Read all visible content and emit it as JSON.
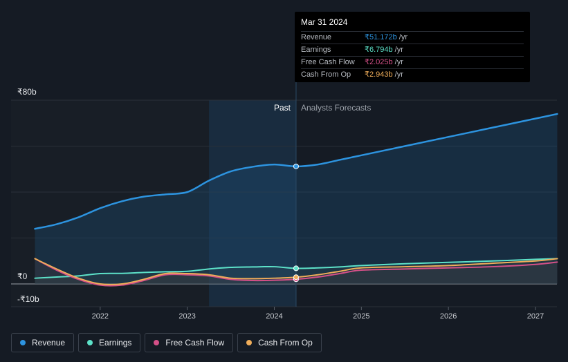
{
  "chart_data": {
    "type": "line",
    "x": [
      2021.25,
      2021.5,
      2021.75,
      2022.0,
      2022.25,
      2022.5,
      2022.75,
      2023.0,
      2023.25,
      2023.5,
      2023.75,
      2024.0,
      2024.25,
      2024.5,
      2024.75,
      2025.0,
      2025.5,
      2026.0,
      2026.5,
      2027.0,
      2027.25
    ],
    "series": [
      {
        "name": "Revenue",
        "color": "#2d94e0",
        "values": [
          24,
          26,
          29,
          33,
          36,
          38,
          39,
          40,
          45,
          49,
          51,
          52,
          51.172,
          52,
          54,
          56,
          60,
          64,
          68,
          72,
          74
        ]
      },
      {
        "name": "Earnings",
        "color": "#5de2c9",
        "values": [
          2.5,
          3,
          3.5,
          4.5,
          4.6,
          5,
          5.3,
          5.5,
          6.5,
          7.2,
          7.4,
          7.5,
          6.794,
          7,
          7.4,
          8,
          8.8,
          9.4,
          10,
          10.7,
          11
        ]
      },
      {
        "name": "Free Cash Flow",
        "color": "#d45088",
        "values": [
          11,
          6,
          2,
          -0.5,
          -0.5,
          1.5,
          4,
          4,
          3.5,
          2,
          1.5,
          1.6,
          2.025,
          3,
          4.5,
          6,
          6.5,
          7,
          7.5,
          8.5,
          9.5
        ]
      },
      {
        "name": "Cash From Op",
        "color": "#efad5a",
        "values": [
          11,
          6.5,
          2.5,
          0,
          0,
          2,
          4.5,
          4.5,
          4,
          2.5,
          2.3,
          2.5,
          2.943,
          4,
          5.5,
          7,
          7.5,
          8,
          9,
          10,
          11
        ]
      }
    ],
    "ylim": [
      -10,
      80
    ],
    "ytick_labels": [
      "₹80b",
      "₹0",
      "-₹10b"
    ],
    "xtick_values": [
      2022,
      2023,
      2024,
      2025,
      2026,
      2027
    ],
    "xtick_labels": [
      "2022",
      "2023",
      "2024",
      "2025",
      "2026",
      "2027"
    ],
    "divider_x": 2024.25,
    "highlight_start_x": 2023.25,
    "past_label": "Past",
    "forecast_label": "Analysts Forecasts",
    "tooltip": {
      "date": "Mar 31 2024",
      "rows": [
        {
          "label": "Revenue",
          "value": "₹51.172b",
          "unit": "/yr",
          "color": "#2d94e0"
        },
        {
          "label": "Earnings",
          "value": "₹6.794b",
          "unit": "/yr",
          "color": "#5de2c9"
        },
        {
          "label": "Free Cash Flow",
          "value": "₹2.025b",
          "unit": "/yr",
          "color": "#d45088"
        },
        {
          "label": "Cash From Op",
          "value": "₹2.943b",
          "unit": "/yr",
          "color": "#efad5a"
        }
      ]
    }
  },
  "legend": [
    {
      "label": "Revenue",
      "color": "#2d94e0"
    },
    {
      "label": "Earnings",
      "color": "#5de2c9"
    },
    {
      "label": "Free Cash Flow",
      "color": "#d45088"
    },
    {
      "label": "Cash From Op",
      "color": "#efad5a"
    }
  ]
}
